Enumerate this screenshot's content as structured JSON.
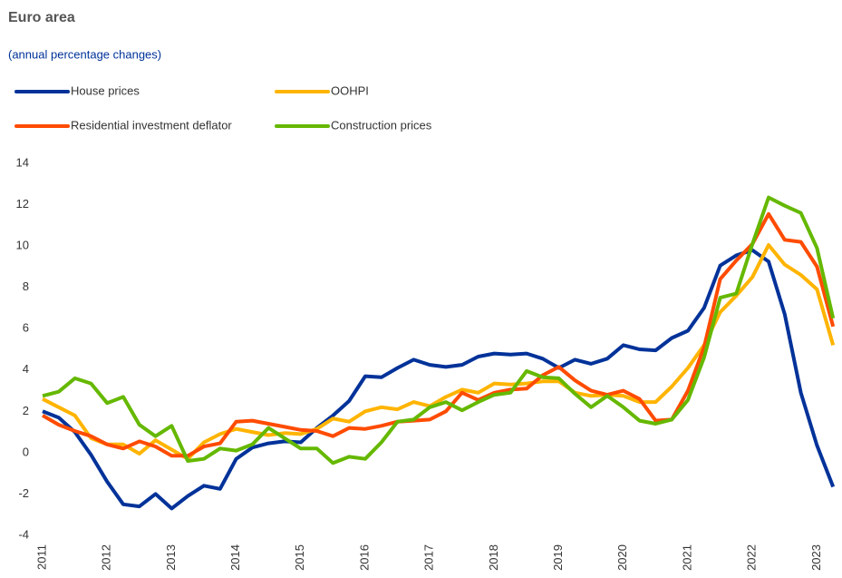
{
  "chart_data": {
    "type": "line",
    "title": "Euro area",
    "subtitle": "(annual percentage changes)",
    "categories": [
      "2011",
      null,
      null,
      null,
      "2012",
      null,
      null,
      null,
      "2013",
      null,
      null,
      null,
      "2014",
      null,
      null,
      null,
      "2015",
      null,
      null,
      null,
      "2016",
      null,
      null,
      null,
      "2017",
      null,
      null,
      null,
      "2018",
      null,
      null,
      null,
      "2019",
      null,
      null,
      null,
      "2020",
      null,
      null,
      null,
      "2021",
      null,
      null,
      null,
      "2022",
      null,
      null,
      null,
      "2023",
      null
    ],
    "series": [
      {
        "name": "House prices",
        "color": "#003299",
        "values": [
          2.0,
          1.7,
          1.0,
          -0.1,
          -1.4,
          -2.5,
          -2.6,
          -2.0,
          -2.7,
          -2.1,
          -1.6,
          -1.75,
          -0.3,
          0.25,
          0.45,
          0.55,
          0.5,
          1.2,
          1.8,
          2.5,
          3.7,
          3.65,
          4.1,
          4.5,
          4.25,
          4.15,
          4.25,
          4.65,
          4.8,
          4.75,
          4.8,
          4.55,
          4.1,
          4.5,
          4.3,
          4.55,
          5.2,
          5.0,
          4.95,
          5.55,
          5.9,
          7.0,
          9.05,
          9.55,
          9.8,
          9.25,
          6.7,
          2.9,
          0.35,
          -1.65
        ]
      },
      {
        "name": "OOHPI",
        "color": "#ffb400",
        "values": [
          2.6,
          2.2,
          1.8,
          0.7,
          0.4,
          0.4,
          -0.05,
          0.6,
          0.15,
          -0.3,
          0.5,
          0.9,
          1.15,
          1.0,
          0.85,
          0.95,
          0.9,
          1.15,
          1.65,
          1.5,
          2.0,
          2.2,
          2.1,
          2.45,
          2.25,
          2.7,
          3.05,
          2.9,
          3.35,
          3.3,
          3.35,
          3.45,
          3.45,
          2.9,
          2.75,
          2.8,
          2.75,
          2.45,
          2.45,
          3.2,
          4.1,
          5.2,
          6.8,
          7.6,
          8.5,
          10.05,
          9.1,
          8.6,
          7.9,
          5.2
        ]
      },
      {
        "name": "Residential investment deflator",
        "color": "#ff4b00",
        "values": [
          1.8,
          1.35,
          1.05,
          0.8,
          0.4,
          0.2,
          0.55,
          0.3,
          -0.15,
          -0.15,
          0.3,
          0.45,
          1.5,
          1.55,
          1.4,
          1.25,
          1.1,
          1.05,
          0.8,
          1.2,
          1.15,
          1.3,
          1.5,
          1.55,
          1.6,
          2.0,
          2.9,
          2.55,
          2.9,
          3.05,
          3.1,
          3.75,
          4.15,
          3.5,
          3.0,
          2.8,
          3.0,
          2.6,
          1.55,
          1.6,
          3.0,
          5.1,
          8.4,
          9.3,
          10.1,
          11.55,
          10.3,
          10.2,
          9.0,
          6.1
        ]
      },
      {
        "name": "Construction prices",
        "color": "#65b800",
        "values": [
          2.75,
          2.95,
          3.6,
          3.35,
          2.4,
          2.7,
          1.35,
          0.8,
          1.3,
          -0.4,
          -0.3,
          0.2,
          0.1,
          0.4,
          1.2,
          0.7,
          0.2,
          0.2,
          -0.5,
          -0.2,
          -0.3,
          0.5,
          1.5,
          1.6,
          2.2,
          2.45,
          2.05,
          2.45,
          2.8,
          2.9,
          3.95,
          3.65,
          3.6,
          2.85,
          2.2,
          2.75,
          2.2,
          1.55,
          1.4,
          1.6,
          2.55,
          4.6,
          7.5,
          7.7,
          10.1,
          12.35,
          11.95,
          11.6,
          9.9,
          6.5
        ]
      }
    ],
    "ylim": [
      -4,
      14
    ],
    "yticks": [
      -4,
      -2,
      0,
      2,
      4,
      6,
      8,
      10,
      12,
      14
    ],
    "grid": false
  }
}
